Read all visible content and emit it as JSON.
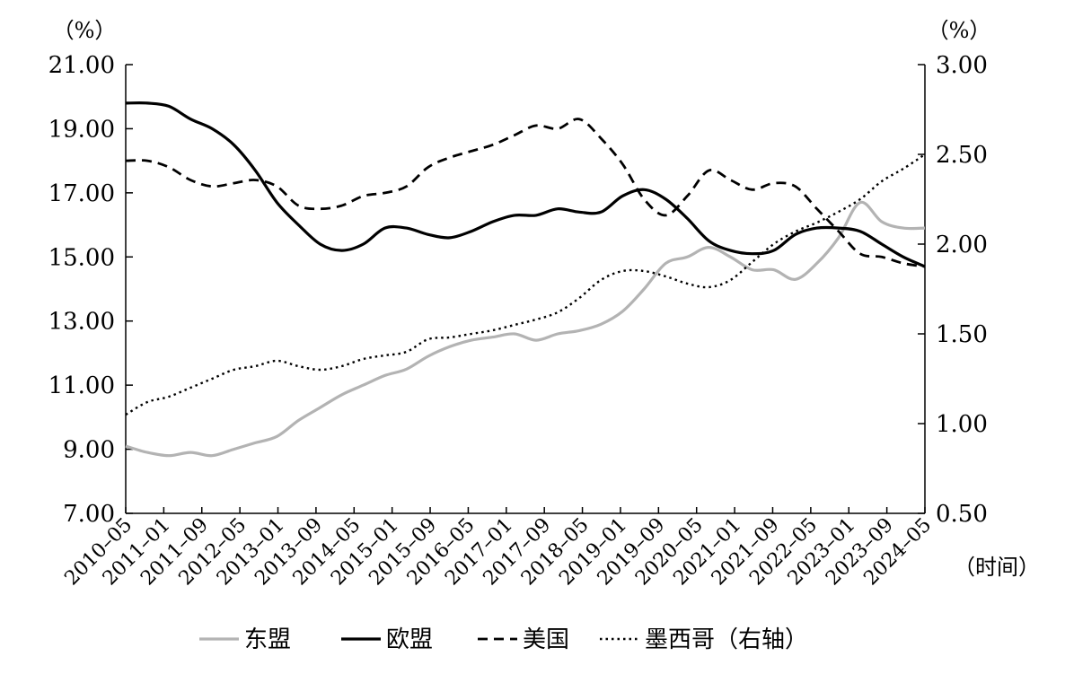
{
  "chart_data": {
    "type": "line",
    "left_unit": "（%）",
    "right_unit": "（%）",
    "xlabel": "（时间）",
    "ylim_left": [
      7.0,
      21.0
    ],
    "ylim_right": [
      0.5,
      3.0
    ],
    "left_ticks": [
      "7.00",
      "9.00",
      "11.00",
      "13.00",
      "15.00",
      "17.00",
      "19.00",
      "21.00"
    ],
    "right_ticks": [
      "0.50",
      "1.00",
      "1.50",
      "2.00",
      "2.50",
      "3.00"
    ],
    "x_ticks": [
      "2010–05",
      "2011–01",
      "2011–09",
      "2012–05",
      "2013–01",
      "2013–09",
      "2014–05",
      "2015–01",
      "2015–09",
      "2016–05",
      "2017–01",
      "2017–09",
      "2018–05",
      "2019–01",
      "2019–09",
      "2020–05",
      "2021–01",
      "2021–09",
      "2022–05",
      "2023–01",
      "2023–09",
      "2024–05"
    ],
    "grid": false,
    "legend_position": "bottom",
    "colors": {
      "asean": "#b3b3b3",
      "eu": "#000000",
      "usa": "#000000",
      "mexico": "#000000"
    },
    "series": [
      {
        "name": "东盟",
        "axis": "left",
        "style": "solid-gray",
        "values": [
          9.1,
          8.9,
          8.8,
          8.9,
          8.8,
          9.0,
          9.2,
          9.4,
          9.9,
          10.3,
          10.7,
          11.0,
          11.3,
          11.5,
          11.9,
          12.2,
          12.4,
          12.5,
          12.6,
          12.4,
          12.6,
          12.7,
          12.9,
          13.3,
          14.0,
          14.8,
          15.0,
          15.3,
          15.0,
          14.6,
          14.6,
          14.3,
          14.8,
          15.6,
          16.7,
          16.1,
          15.9,
          15.9
        ]
      },
      {
        "name": "欧盟",
        "axis": "left",
        "style": "solid-thick",
        "values": [
          19.8,
          19.8,
          19.7,
          19.3,
          19.0,
          18.5,
          17.7,
          16.7,
          16.0,
          15.4,
          15.2,
          15.4,
          15.9,
          15.9,
          15.7,
          15.6,
          15.8,
          16.1,
          16.3,
          16.3,
          16.5,
          16.4,
          16.4,
          16.9,
          17.1,
          16.8,
          16.2,
          15.5,
          15.2,
          15.1,
          15.2,
          15.7,
          15.9,
          15.9,
          15.8,
          15.4,
          15.0,
          14.7
        ]
      },
      {
        "name": "美国",
        "axis": "left",
        "style": "dashed",
        "values": [
          18.0,
          18.0,
          17.8,
          17.4,
          17.2,
          17.3,
          17.4,
          17.2,
          16.6,
          16.5,
          16.6,
          16.9,
          17.0,
          17.2,
          17.8,
          18.1,
          18.3,
          18.5,
          18.8,
          19.1,
          19.0,
          19.3,
          18.7,
          17.9,
          16.8,
          16.3,
          16.9,
          17.7,
          17.4,
          17.1,
          17.3,
          17.2,
          16.5,
          15.8,
          15.1,
          15.0,
          14.8,
          14.7
        ]
      },
      {
        "name": "墨西哥（右轴）",
        "axis": "right",
        "style": "dotted",
        "values": [
          1.05,
          1.12,
          1.15,
          1.2,
          1.25,
          1.3,
          1.32,
          1.35,
          1.32,
          1.3,
          1.32,
          1.36,
          1.38,
          1.4,
          1.47,
          1.48,
          1.5,
          1.52,
          1.55,
          1.58,
          1.62,
          1.7,
          1.8,
          1.85,
          1.85,
          1.82,
          1.78,
          1.76,
          1.8,
          1.9,
          2.0,
          2.07,
          2.12,
          2.18,
          2.25,
          2.35,
          2.42,
          2.5
        ]
      }
    ]
  }
}
